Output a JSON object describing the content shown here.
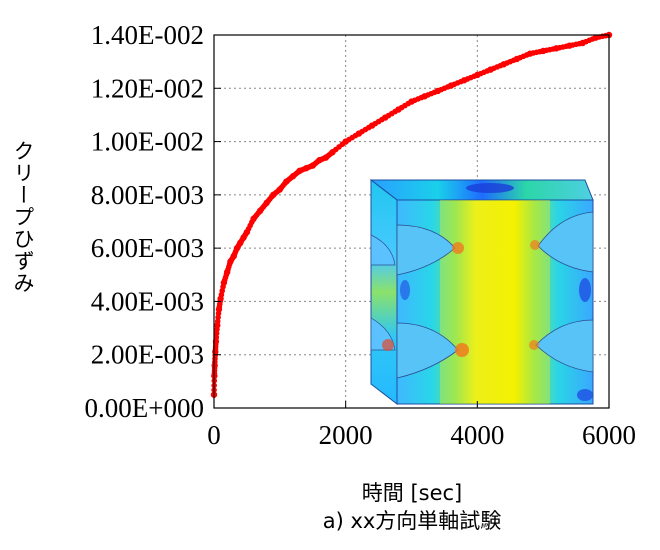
{
  "chart_data": {
    "type": "scatter",
    "xlabel": "時間 [sec]",
    "ylabel": "クリープひずみ",
    "caption": "a) xx方向単軸試験",
    "xlim": [
      0,
      6000
    ],
    "ylim": [
      0,
      0.014
    ],
    "grid": true,
    "x_ticks": [
      "0",
      "2000",
      "4000",
      "6000"
    ],
    "y_ticks": [
      "0.00E+000",
      "2.00E-003",
      "4.00E-003",
      "6.00E-003",
      "8.00E-003",
      "1.00E-002",
      "1.20E-002",
      "1.40E-002"
    ],
    "series": [
      {
        "color": "#ff0000",
        "marker": "circle",
        "x": [
          0,
          5,
          10,
          20,
          30,
          50,
          75,
          100,
          150,
          200,
          250,
          300,
          350,
          400,
          450,
          500,
          600,
          700,
          800,
          900,
          1000,
          1100,
          1200,
          1300,
          1400,
          1500,
          1600,
          1700,
          1800,
          2000,
          2200,
          2400,
          2600,
          2800,
          3000,
          3200,
          3400,
          3600,
          3800,
          4000,
          4200,
          4400,
          4600,
          4800,
          5000,
          5200,
          5400,
          5600,
          5800,
          6000
        ],
        "y": [
          0.0005,
          0.0012,
          0.0016,
          0.0021,
          0.0025,
          0.0031,
          0.0037,
          0.0041,
          0.0047,
          0.0051,
          0.0055,
          0.0057,
          0.006,
          0.0062,
          0.0064,
          0.0066,
          0.0071,
          0.0074,
          0.0077,
          0.008,
          0.0082,
          0.0085,
          0.0087,
          0.0089,
          0.009,
          0.0091,
          0.0093,
          0.0094,
          0.0096,
          0.01,
          0.0103,
          0.0106,
          0.0109,
          0.0112,
          0.0115,
          0.0117,
          0.0119,
          0.0121,
          0.0123,
          0.0125,
          0.0127,
          0.0129,
          0.0131,
          0.0133,
          0.0134,
          0.0135,
          0.0136,
          0.0137,
          0.0139,
          0.014
        ]
      }
    ]
  }
}
